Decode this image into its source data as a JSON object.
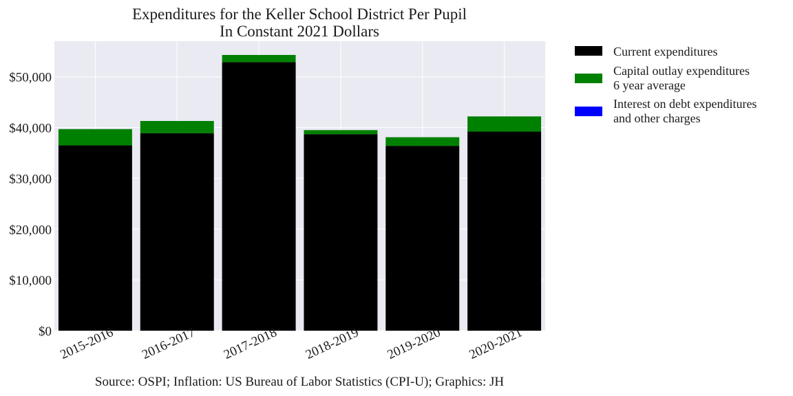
{
  "chart_data": {
    "type": "bar",
    "stacked": true,
    "title": "Expenditures for the Keller School District Per Pupil",
    "subtitle": "In Constant 2021 Dollars",
    "xlabel": "",
    "ylabel": "",
    "categories": [
      "2015-2016",
      "2016-2017",
      "2017-2018",
      "2018-2019",
      "2019-2020",
      "2020-2021"
    ],
    "series": [
      {
        "name": "Current expenditures",
        "name_line2": "",
        "color": "#000000",
        "values": [
          36500,
          38900,
          52900,
          38700,
          36400,
          39200
        ]
      },
      {
        "name": "Capital outlay expenditures",
        "name_line2": "6 year average",
        "color": "#008000",
        "values": [
          3200,
          2400,
          1400,
          800,
          1700,
          3000
        ]
      },
      {
        "name": "Interest on debt expenditures",
        "name_line2": "and other charges",
        "color": "#0000ff",
        "values": [
          0,
          0,
          0,
          0,
          0,
          0
        ]
      }
    ],
    "ylim": [
      0,
      57000
    ],
    "yticks": [
      0,
      10000,
      20000,
      30000,
      40000,
      50000
    ],
    "ytick_labels": [
      "$0",
      "$10,000",
      "$20,000",
      "$30,000",
      "$40,000",
      "$50,000"
    ],
    "grid": true,
    "legend_position": "outside-right",
    "source_note": "Source: OSPI; Inflation: US Bureau of Labor Statistics (CPI-U); Graphics: JH"
  }
}
